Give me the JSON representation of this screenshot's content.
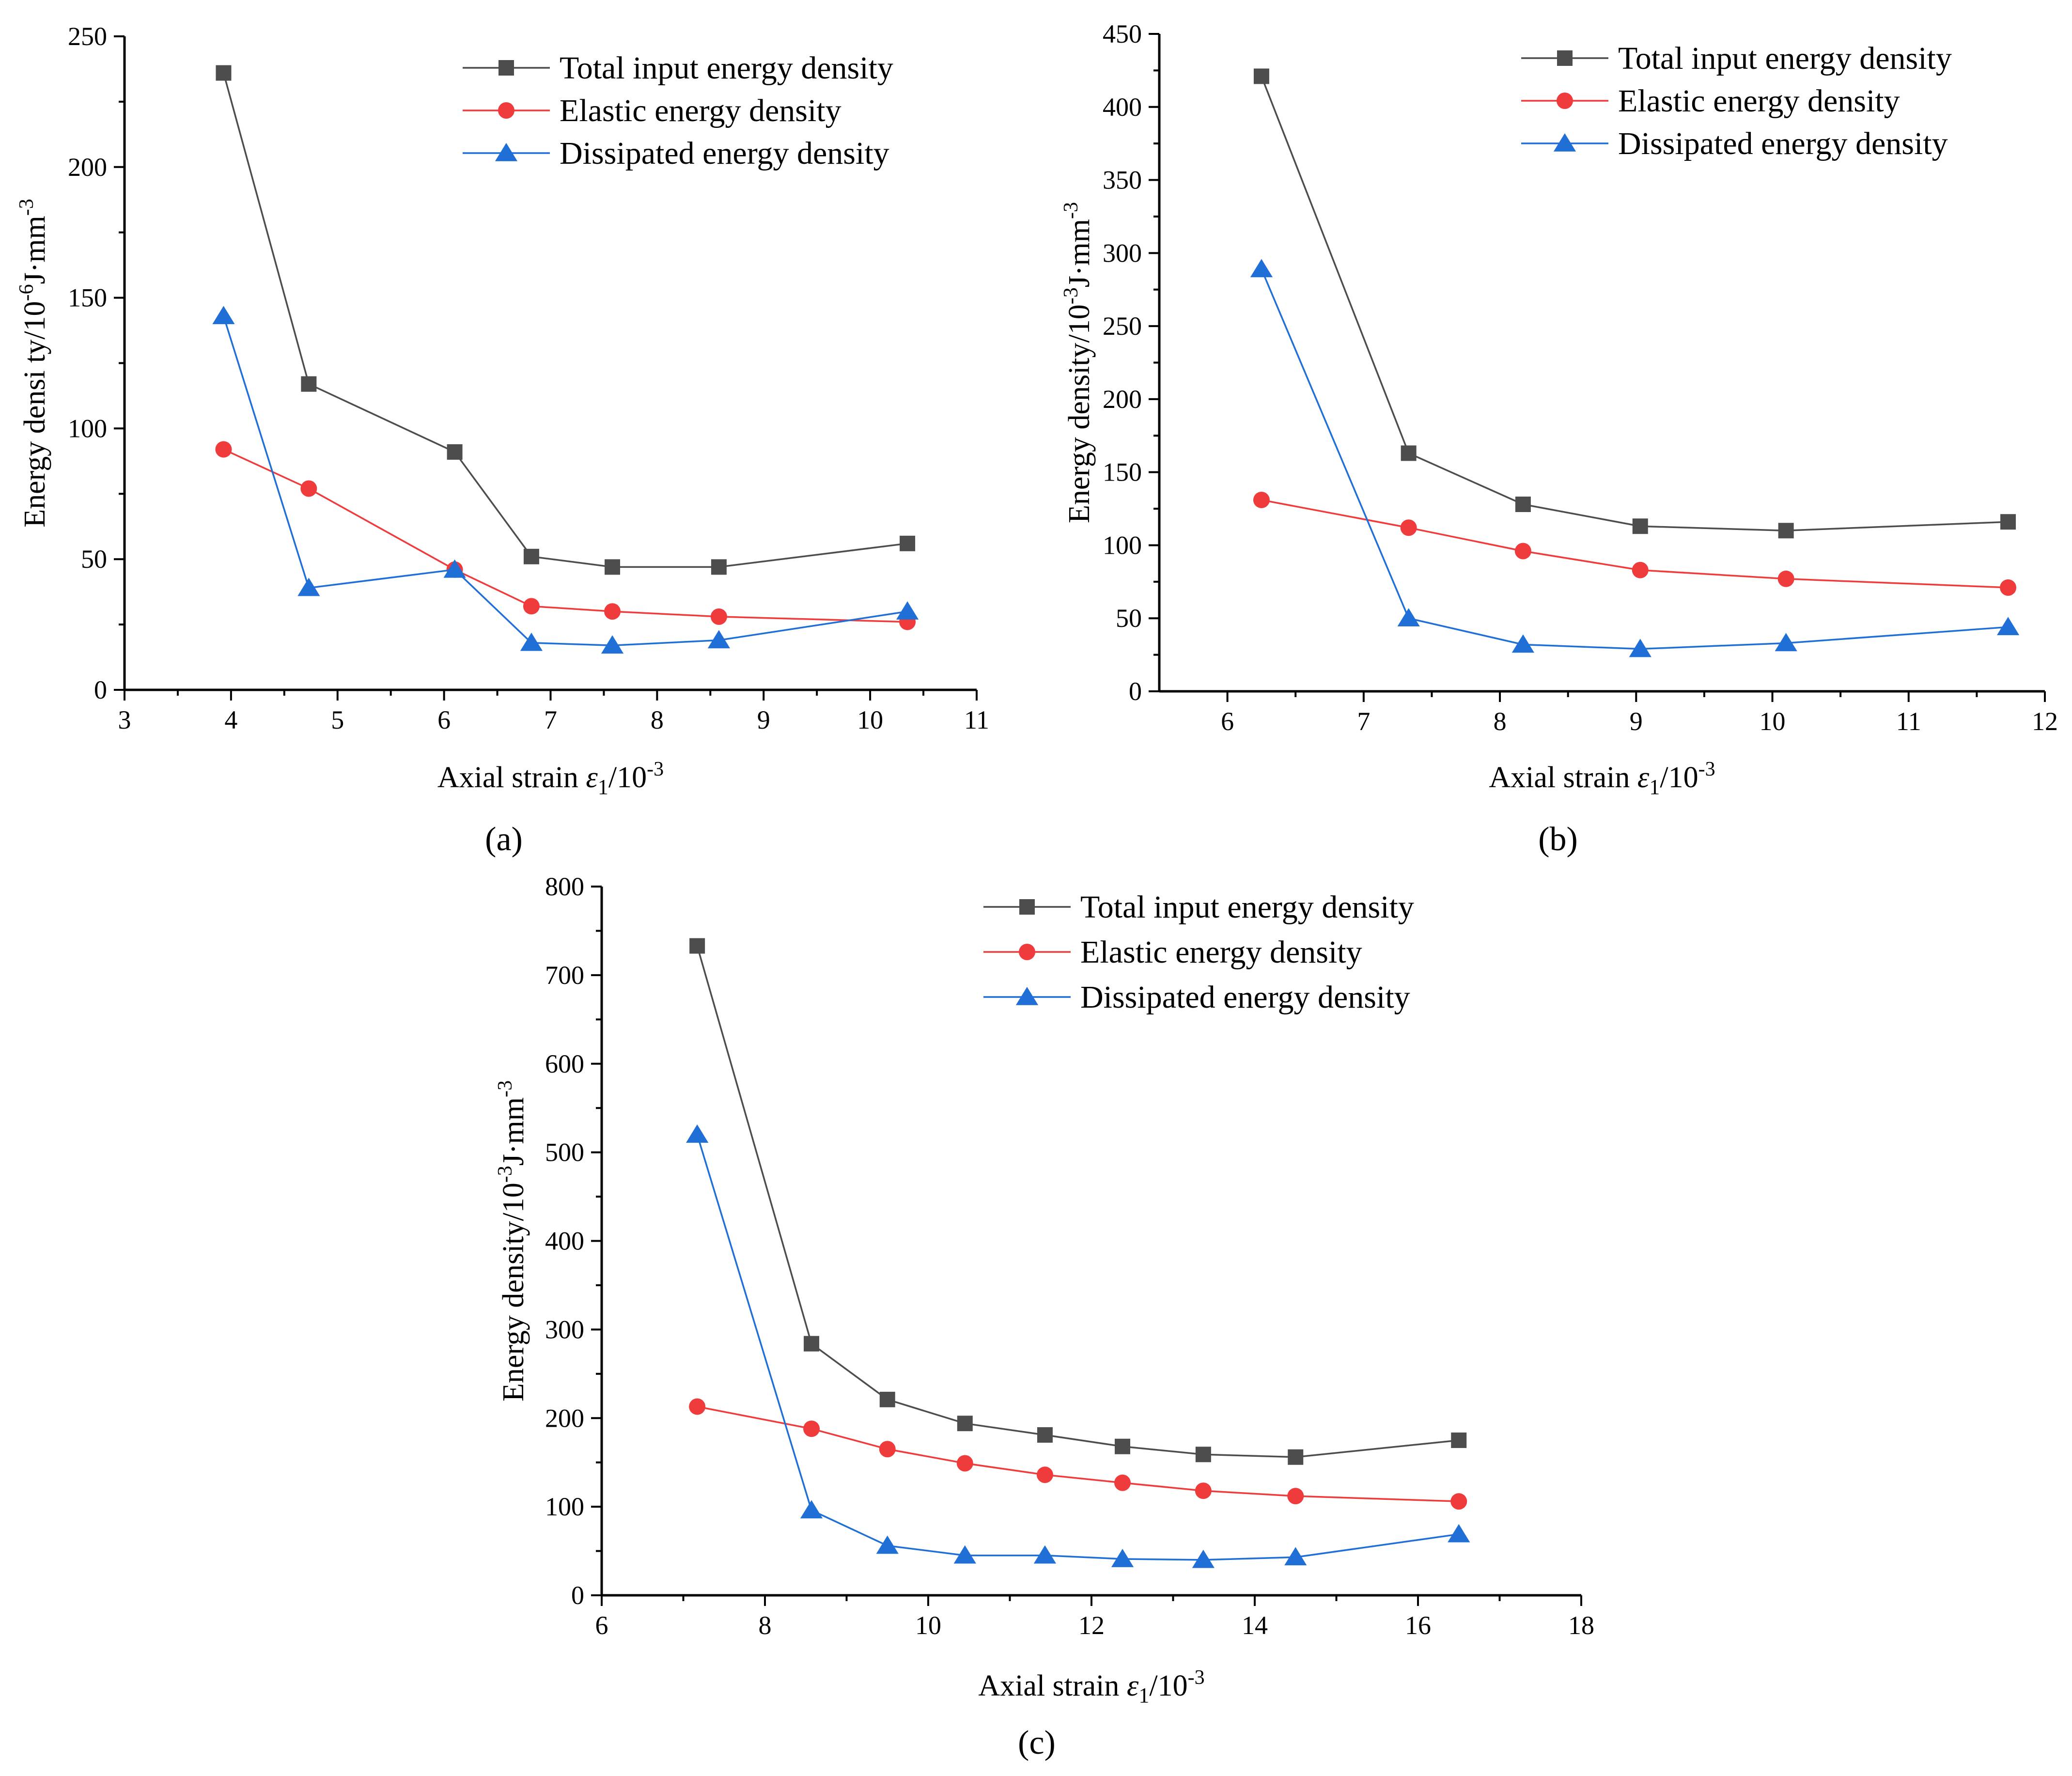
{
  "figure": {
    "panel_labels": [
      "(a)",
      "(b)",
      "(c)"
    ]
  },
  "colors": {
    "total": "#4d4d4d",
    "elastic": "#ef3b3b",
    "dissipated": "#1f6fd6"
  },
  "chart_data": [
    {
      "type": "line",
      "panel": "(a)",
      "xlabel": "Axial strain  ε1/10-3",
      "xlabel_main": "Axial strain",
      "xlabel_symbol": "ε",
      "xlabel_sub": "1",
      "xlabel_unit": "/10",
      "xlabel_exp": "-3",
      "ylabel": "Energy  densi ty/10-6J·mm-3",
      "ylabel_main": "Energy  densi ty/10",
      "ylabel_exp1": "-6",
      "ylabel_mid": "J·mm",
      "ylabel_exp2": "-3",
      "xlim": [
        3,
        11
      ],
      "ylim": [
        0,
        250
      ],
      "xticks": [
        3,
        4,
        5,
        6,
        7,
        8,
        9,
        10,
        11
      ],
      "yticks": [
        0,
        50,
        100,
        150,
        200,
        250
      ],
      "legend_position": "top-right",
      "series": [
        {
          "name": "Total input energy density",
          "marker": "square",
          "x": [
            3.93,
            4.73,
            6.1,
            6.82,
            7.58,
            8.58,
            10.35
          ],
          "values": [
            236,
            117,
            91,
            51,
            47,
            47,
            56
          ]
        },
        {
          "name": "Elastic energy density",
          "marker": "circle",
          "x": [
            3.93,
            4.73,
            6.1,
            6.82,
            7.58,
            8.58,
            10.35
          ],
          "values": [
            92,
            77,
            46,
            32,
            30,
            28,
            26
          ]
        },
        {
          "name": "Dissipated energy density",
          "marker": "triangle",
          "x": [
            3.93,
            4.73,
            6.1,
            6.82,
            7.58,
            8.58,
            10.35
          ],
          "values": [
            143,
            39,
            46,
            18,
            17,
            19,
            30
          ]
        }
      ]
    },
    {
      "type": "line",
      "panel": "(b)",
      "xlabel": "Axial strain  ε1/10-3",
      "xlabel_main": "Axial strain",
      "xlabel_symbol": "ε",
      "xlabel_sub": "1",
      "xlabel_unit": "/10",
      "xlabel_exp": "-3",
      "ylabel": "Energy density/10-3J·mm-3",
      "ylabel_main": "Energy density/10",
      "ylabel_exp1": "-3",
      "ylabel_mid": "J·mm",
      "ylabel_exp2": "-3",
      "xlim": [
        5.5,
        12
      ],
      "ylim": [
        0,
        450
      ],
      "xticks": [
        6,
        7,
        8,
        9,
        10,
        11,
        12
      ],
      "yticks": [
        0,
        50,
        100,
        150,
        200,
        250,
        300,
        350,
        400,
        450
      ],
      "legend_position": "top-right",
      "series": [
        {
          "name": "Total input energy density",
          "marker": "square",
          "x": [
            6.25,
            7.33,
            8.17,
            9.03,
            10.1,
            11.73
          ],
          "values": [
            421,
            163,
            128,
            113,
            110,
            116
          ]
        },
        {
          "name": "Elastic energy density",
          "marker": "circle",
          "x": [
            6.25,
            7.33,
            8.17,
            9.03,
            10.1,
            11.73
          ],
          "values": [
            131,
            112,
            96,
            83,
            77,
            71
          ]
        },
        {
          "name": "Dissipated energy density",
          "marker": "triangle",
          "x": [
            6.25,
            7.33,
            8.17,
            9.03,
            10.1,
            11.73
          ],
          "values": [
            289,
            50,
            32,
            29,
            33,
            44
          ]
        }
      ]
    },
    {
      "type": "line",
      "panel": "(c)",
      "xlabel": "Axial strain  ε1/10-3",
      "xlabel_main": "Axial strain",
      "xlabel_symbol": "ε",
      "xlabel_sub": "1",
      "xlabel_unit": "/10",
      "xlabel_exp": "-3",
      "ylabel": "Energy density/10-3J·mm-3",
      "ylabel_main": "Energy density/10",
      "ylabel_exp1": "-3",
      "ylabel_mid": "J·mm",
      "ylabel_exp2": "-3",
      "xlim": [
        6,
        18
      ],
      "ylim": [
        0,
        800
      ],
      "xticks": [
        6,
        8,
        10,
        12,
        14,
        16,
        18
      ],
      "yticks": [
        0,
        100,
        200,
        300,
        400,
        500,
        600,
        700,
        800
      ],
      "legend_position": "top-right",
      "series": [
        {
          "name": "Total input energy density",
          "marker": "square",
          "x": [
            7.17,
            8.57,
            9.5,
            10.45,
            11.43,
            12.38,
            13.37,
            14.5,
            16.5
          ],
          "values": [
            733,
            284,
            221,
            194,
            181,
            168,
            159,
            156,
            175
          ]
        },
        {
          "name": "Elastic energy density",
          "marker": "circle",
          "x": [
            7.17,
            8.57,
            9.5,
            10.45,
            11.43,
            12.38,
            13.37,
            14.5,
            16.5
          ],
          "values": [
            213,
            188,
            165,
            149,
            136,
            127,
            118,
            112,
            106
          ]
        },
        {
          "name": "Dissipated energy density",
          "marker": "triangle",
          "x": [
            7.17,
            8.57,
            9.5,
            10.45,
            11.43,
            12.38,
            13.37,
            14.5,
            16.5
          ],
          "values": [
            520,
            96,
            56,
            45,
            45,
            41,
            40,
            43,
            69
          ]
        }
      ]
    }
  ]
}
